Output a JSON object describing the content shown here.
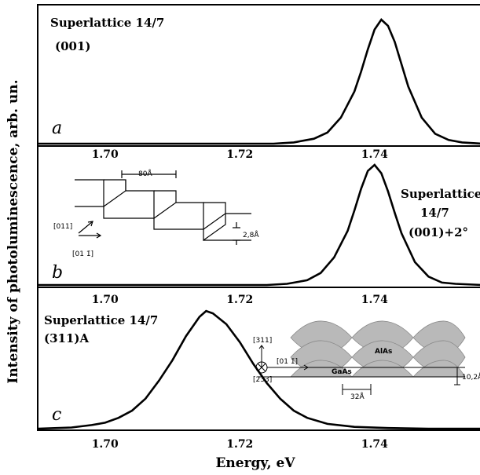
{
  "chart_data": {
    "type": "line",
    "xlabel": "Energy, eV",
    "ylabel": "Intensity of photoluminescence, arb. un.",
    "xlim": [
      1.69,
      1.756
    ],
    "x_ticks": [
      "1.70",
      "1.72",
      "1.74"
    ],
    "x_tick_values": [
      1.7,
      1.72,
      1.74
    ],
    "panels": [
      {
        "letter": "a",
        "label_lines": [
          "Superlattice 14/7",
          "(001)"
        ],
        "series": {
          "x": [
            1.69,
            1.725,
            1.728,
            1.731,
            1.733,
            1.735,
            1.737,
            1.738,
            1.739,
            1.74,
            1.741,
            1.742,
            1.743,
            1.744,
            1.745,
            1.747,
            1.749,
            1.751,
            1.753,
            1.756
          ],
          "y": [
            0.0,
            0.0,
            0.01,
            0.04,
            0.09,
            0.21,
            0.42,
            0.58,
            0.76,
            0.92,
            1.0,
            0.95,
            0.82,
            0.64,
            0.46,
            0.21,
            0.08,
            0.03,
            0.01,
            0.0
          ]
        }
      },
      {
        "letter": "b",
        "label_lines": [
          "Superlattice",
          "14/7",
          "(001)+2°"
        ],
        "inset": {
          "terrace_width": "80Å",
          "step_height": "2,8Å",
          "dir_up": "[011]",
          "dir_right": "[01 1̄]"
        },
        "series": {
          "x": [
            1.69,
            1.724,
            1.727,
            1.73,
            1.732,
            1.734,
            1.736,
            1.737,
            1.738,
            1.739,
            1.74,
            1.741,
            1.742,
            1.743,
            1.744,
            1.746,
            1.748,
            1.75,
            1.752,
            1.756
          ],
          "y": [
            0.0,
            0.0,
            0.01,
            0.04,
            0.1,
            0.23,
            0.45,
            0.62,
            0.8,
            0.95,
            1.0,
            0.93,
            0.78,
            0.6,
            0.43,
            0.19,
            0.07,
            0.02,
            0.01,
            0.0
          ]
        }
      },
      {
        "letter": "c",
        "label_lines": [
          "Superlattice 14/7",
          "(311)A"
        ],
        "inset": {
          "top_label": "AlAs",
          "bottom_label": "GaAs",
          "period": "32Å",
          "height": "10,2Å",
          "dir_up": "[311]",
          "dir_right": "[01 1̄]",
          "dir_in": "[2̄33]"
        },
        "series": {
          "x": [
            1.69,
            1.695,
            1.698,
            1.7,
            1.702,
            1.704,
            1.706,
            1.708,
            1.71,
            1.712,
            1.714,
            1.715,
            1.716,
            1.718,
            1.72,
            1.722,
            1.724,
            1.726,
            1.728,
            1.73,
            1.733,
            1.737,
            1.742,
            1.748,
            1.756
          ],
          "y": [
            0.0,
            0.01,
            0.03,
            0.05,
            0.09,
            0.15,
            0.25,
            0.4,
            0.57,
            0.77,
            0.93,
            0.98,
            0.96,
            0.87,
            0.72,
            0.54,
            0.38,
            0.25,
            0.15,
            0.09,
            0.04,
            0.015,
            0.005,
            0.0,
            0.0
          ]
        }
      }
    ]
  }
}
